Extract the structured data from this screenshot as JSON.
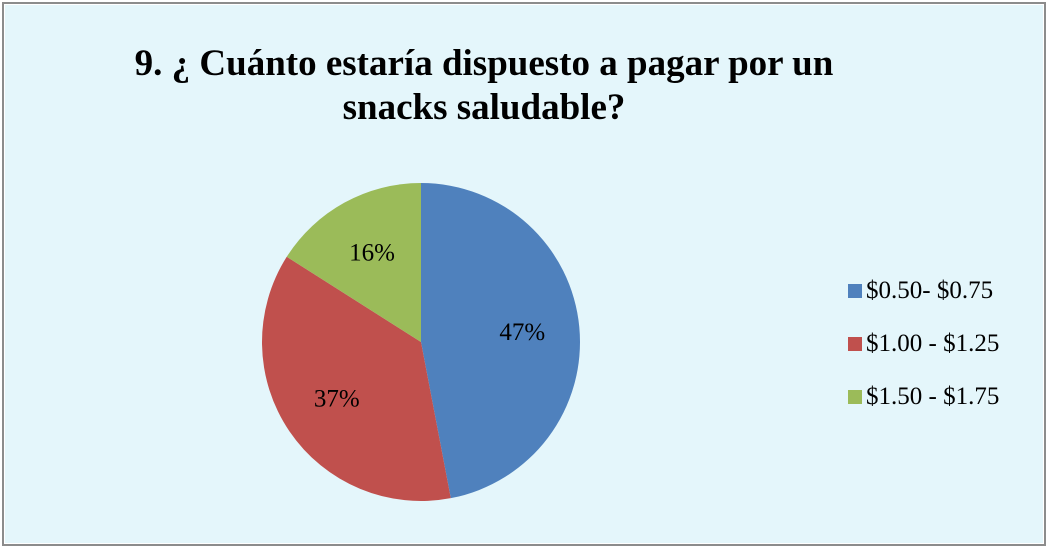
{
  "chart_data": {
    "type": "pie",
    "title": "9. ¿ Cuánto estaría dispuesto a pagar por un snacks saludable?",
    "categories": [
      "$0.50- $0.75",
      "$1.00 - $1.25",
      "$1.50 - $1.75"
    ],
    "values": [
      47,
      37,
      16
    ],
    "data_labels": [
      "47%",
      "37%",
      "16%"
    ],
    "colors": [
      "#4f81bd",
      "#c0504d",
      "#9bbb59"
    ],
    "legend_position": "right"
  }
}
